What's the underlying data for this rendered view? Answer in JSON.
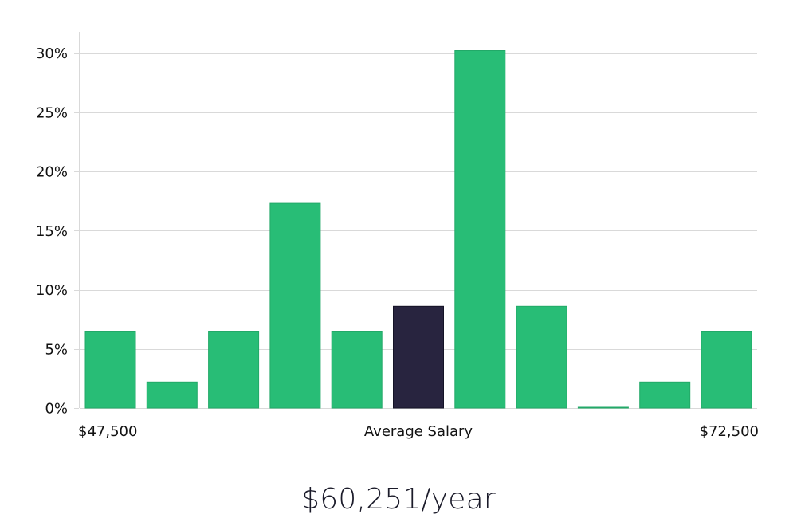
{
  "chart_data": {
    "type": "bar",
    "title": "",
    "xlabel": "Average Salary",
    "ylabel": "",
    "x_range_labels": {
      "min": "$47,500",
      "max": "$72,500"
    },
    "ylim": [
      0,
      31
    ],
    "yticks": [
      0,
      5,
      10,
      15,
      20,
      25,
      30
    ],
    "ytick_labels": [
      "0%",
      "5%",
      "10%",
      "15%",
      "20%",
      "25%",
      "30%"
    ],
    "grid": true,
    "values": [
      6.5,
      2.2,
      6.5,
      17.3,
      6.5,
      8.6,
      30.2,
      8.6,
      0.05,
      2.2,
      6.5
    ],
    "highlight_index": 5,
    "colors": {
      "bar": "#28bd76",
      "highlight": "#28243f",
      "grid": "#d9d9d9"
    }
  },
  "summary": {
    "average_salary": "$60,251/year"
  }
}
